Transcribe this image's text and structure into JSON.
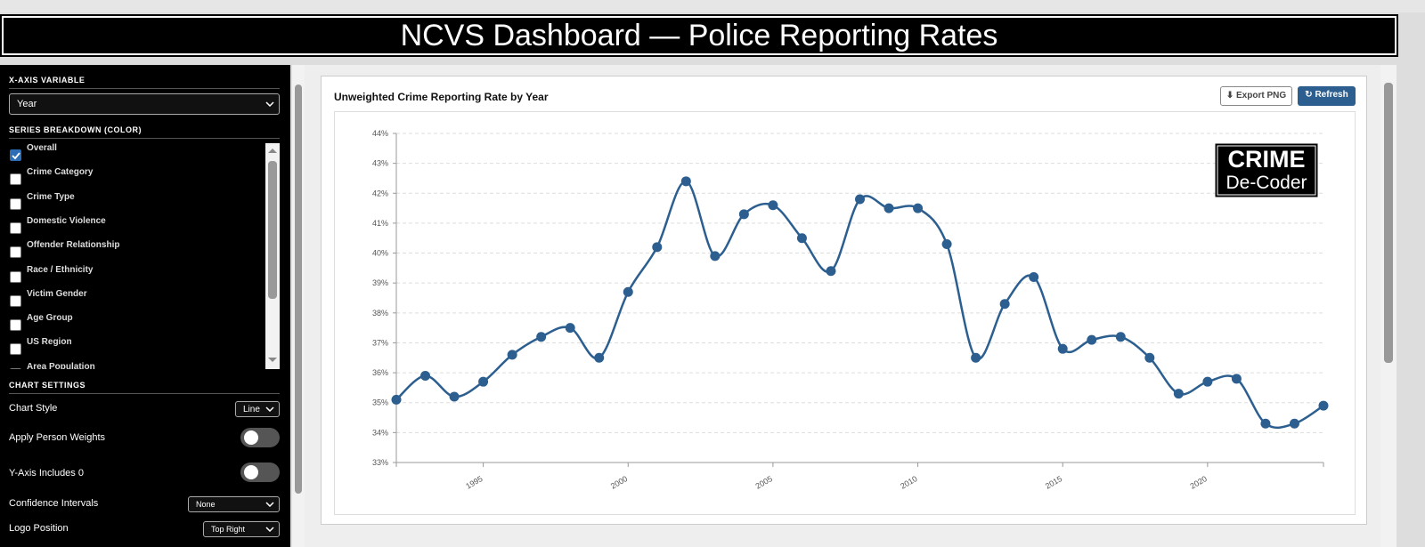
{
  "header": {
    "title": "NCVS Dashboard — Police Reporting Rates"
  },
  "sidebar": {
    "x_axis": {
      "heading": "X-AXIS VARIABLE",
      "selected": "Year"
    },
    "series": {
      "heading": "SERIES BREAKDOWN (COLOR)",
      "items": [
        {
          "label": "Overall",
          "checked": true
        },
        {
          "label": "Crime Category",
          "checked": false
        },
        {
          "label": "Crime Type",
          "checked": false
        },
        {
          "label": "Domestic Violence",
          "checked": false
        },
        {
          "label": "Offender Relationship",
          "checked": false
        },
        {
          "label": "Race / Ethnicity",
          "checked": false
        },
        {
          "label": "Victim Gender",
          "checked": false
        },
        {
          "label": "Age Group",
          "checked": false
        },
        {
          "label": "US Region",
          "checked": false
        },
        {
          "label": "Area Population",
          "checked": false
        }
      ]
    },
    "settings": {
      "heading": "CHART SETTINGS",
      "chart_style": {
        "label": "Chart Style",
        "selected": "Line"
      },
      "weights": {
        "label": "Apply Person Weights",
        "on": false
      },
      "zero": {
        "label": "Y-Axis Includes 0",
        "on": false
      },
      "ci": {
        "label": "Confidence Intervals",
        "selected": "None"
      },
      "logo": {
        "label": "Logo Position",
        "selected": "Top Right"
      }
    }
  },
  "buttons": {
    "export": "⬇ Export PNG",
    "refresh": "↻ Refresh"
  },
  "logo": {
    "line1": "CRIME",
    "line2": "De-Coder"
  },
  "chart_data": {
    "type": "line",
    "title": "Unweighted Crime Reporting Rate by Year",
    "x": [
      1992,
      1993,
      1994,
      1995,
      1996,
      1997,
      1998,
      1999,
      2000,
      2001,
      2002,
      2003,
      2004,
      2005,
      2006,
      2007,
      2008,
      2009,
      2010,
      2011,
      2012,
      2013,
      2014,
      2015,
      2016,
      2017,
      2018,
      2019,
      2020,
      2021,
      2022,
      2023,
      2024
    ],
    "series": [
      {
        "name": "Overall",
        "color": "#2c5f8f",
        "values": [
          35.1,
          35.9,
          35.2,
          35.7,
          36.6,
          37.2,
          37.5,
          36.5,
          38.7,
          40.2,
          42.4,
          39.9,
          41.3,
          41.6,
          40.5,
          39.4,
          41.8,
          41.5,
          41.5,
          40.3,
          36.5,
          38.3,
          39.2,
          36.8,
          37.1,
          37.2,
          36.5,
          35.3,
          35.7,
          35.8,
          34.3,
          34.3,
          34.9
        ]
      }
    ],
    "xlim": [
      1992,
      2024
    ],
    "xticks": [
      1995,
      2000,
      2005,
      2010,
      2015,
      2020
    ],
    "ylim": [
      33,
      44
    ],
    "yticks": [
      {
        "value": 33,
        "label": "33%"
      },
      {
        "value": 34,
        "label": "34%"
      },
      {
        "value": 35,
        "label": "35%"
      },
      {
        "value": 36,
        "label": "36%"
      },
      {
        "value": 37,
        "label": "37%"
      },
      {
        "value": 38,
        "label": "38%"
      },
      {
        "value": 39,
        "label": "39%"
      },
      {
        "value": 40,
        "label": "40%"
      },
      {
        "value": 41,
        "label": "41%"
      },
      {
        "value": 42,
        "label": "42%"
      },
      {
        "value": 43,
        "label": "43%"
      },
      {
        "value": 44,
        "label": "44%"
      }
    ],
    "grid": true
  }
}
